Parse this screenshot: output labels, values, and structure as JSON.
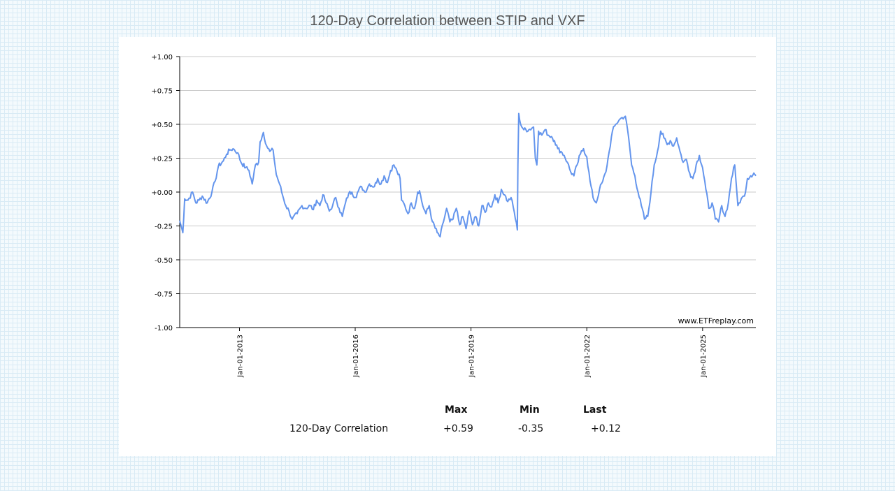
{
  "chart_data": {
    "type": "line",
    "title": "120-Day Correlation between STIP and VXF",
    "xlabel": "",
    "ylabel": "",
    "ylim": [
      -1.0,
      1.0
    ],
    "xlim": [
      "2011-06-15",
      "2026-05-20"
    ],
    "grid": true,
    "y_ticks": [
      "+1.00",
      "+0.75",
      "+0.50",
      "+0.25",
      "+0.00",
      "-0.25",
      "-0.50",
      "-0.75",
      "-1.00"
    ],
    "x_ticks": [
      {
        "date": "2013-01-01",
        "label": "Jan-01-2013"
      },
      {
        "date": "2016-01-01",
        "label": "Jan-01-2016"
      },
      {
        "date": "2019-01-01",
        "label": "Jan-01-2019"
      },
      {
        "date": "2022-01-01",
        "label": "Jan-01-2022"
      },
      {
        "date": "2025-01-01",
        "label": "Jan-01-2025"
      }
    ],
    "watermark": "www.ETFreplay.com",
    "line_color": "#6495ed",
    "series": [
      {
        "points": [
          [
            "2011-06-15",
            -0.21
          ],
          [
            "2011-07-15",
            -0.3
          ],
          [
            "2011-08-01",
            -0.05
          ],
          [
            "2011-09-01",
            -0.06
          ],
          [
            "2011-10-15",
            0.0
          ],
          [
            "2011-11-15",
            -0.08
          ],
          [
            "2011-12-15",
            -0.06
          ],
          [
            "2012-01-15",
            -0.03
          ],
          [
            "2012-03-01",
            -0.08
          ],
          [
            "2012-04-15",
            0.0
          ],
          [
            "2012-05-15",
            0.08
          ],
          [
            "2012-06-15",
            0.19
          ],
          [
            "2012-08-01",
            0.23
          ],
          [
            "2012-09-01",
            0.28
          ],
          [
            "2012-10-01",
            0.31
          ],
          [
            "2012-11-01",
            0.32
          ],
          [
            "2012-12-15",
            0.29
          ],
          [
            "2013-01-15",
            0.22
          ],
          [
            "2013-03-01",
            0.18
          ],
          [
            "2013-04-01",
            0.16
          ],
          [
            "2013-05-01",
            0.06
          ],
          [
            "2013-06-01",
            0.2
          ],
          [
            "2013-07-01",
            0.22
          ],
          [
            "2013-07-15",
            0.37
          ],
          [
            "2013-08-15",
            0.44
          ],
          [
            "2013-09-15",
            0.34
          ],
          [
            "2013-10-15",
            0.3
          ],
          [
            "2013-11-15",
            0.31
          ],
          [
            "2013-12-15",
            0.13
          ],
          [
            "2014-01-15",
            0.06
          ],
          [
            "2014-02-15",
            -0.03
          ],
          [
            "2014-03-15",
            -0.1
          ],
          [
            "2014-04-15",
            -0.14
          ],
          [
            "2014-05-15",
            -0.2
          ],
          [
            "2014-07-01",
            -0.16
          ],
          [
            "2014-08-15",
            -0.1
          ],
          [
            "2014-09-15",
            -0.12
          ],
          [
            "2014-11-01",
            -0.1
          ],
          [
            "2014-12-01",
            -0.13
          ],
          [
            "2015-01-01",
            -0.06
          ],
          [
            "2015-02-01",
            -0.1
          ],
          [
            "2015-03-01",
            -0.02
          ],
          [
            "2015-04-01",
            -0.08
          ],
          [
            "2015-05-01",
            -0.14
          ],
          [
            "2015-06-01",
            -0.1
          ],
          [
            "2015-07-01",
            -0.04
          ],
          [
            "2015-08-01",
            -0.12
          ],
          [
            "2015-09-01",
            -0.18
          ],
          [
            "2015-10-01",
            -0.08
          ],
          [
            "2015-11-01",
            -0.01
          ],
          [
            "2015-12-01",
            0.0
          ],
          [
            "2016-01-01",
            -0.04
          ],
          [
            "2016-02-01",
            0.01
          ],
          [
            "2016-03-01",
            0.04
          ],
          [
            "2016-04-01",
            0.0
          ],
          [
            "2016-05-15",
            0.06
          ],
          [
            "2016-07-01",
            0.04
          ],
          [
            "2016-08-01",
            0.1
          ],
          [
            "2016-09-01",
            0.06
          ],
          [
            "2016-10-01",
            0.12
          ],
          [
            "2016-11-01",
            0.07
          ],
          [
            "2016-12-01",
            0.16
          ],
          [
            "2017-01-01",
            0.2
          ],
          [
            "2017-02-01",
            0.15
          ],
          [
            "2017-03-01",
            0.1
          ],
          [
            "2017-03-15",
            -0.06
          ],
          [
            "2017-04-15",
            -0.1
          ],
          [
            "2017-05-15",
            -0.16
          ],
          [
            "2017-06-15",
            -0.08
          ],
          [
            "2017-07-15",
            -0.12
          ],
          [
            "2017-08-15",
            0.0
          ],
          [
            "2017-09-01",
            0.01
          ],
          [
            "2017-10-01",
            -0.1
          ],
          [
            "2017-11-01",
            -0.16
          ],
          [
            "2017-12-01",
            -0.1
          ],
          [
            "2018-01-01",
            -0.22
          ],
          [
            "2018-02-15",
            -0.3
          ],
          [
            "2018-03-15",
            -0.33
          ],
          [
            "2018-04-15",
            -0.22
          ],
          [
            "2018-05-15",
            -0.12
          ],
          [
            "2018-06-15",
            -0.22
          ],
          [
            "2018-07-15",
            -0.2
          ],
          [
            "2018-08-15",
            -0.12
          ],
          [
            "2018-09-15",
            -0.24
          ],
          [
            "2018-10-15",
            -0.18
          ],
          [
            "2018-11-15",
            -0.27
          ],
          [
            "2018-12-15",
            -0.14
          ],
          [
            "2019-01-15",
            -0.24
          ],
          [
            "2019-02-15",
            -0.18
          ],
          [
            "2019-03-15",
            -0.25
          ],
          [
            "2019-04-15",
            -0.1
          ],
          [
            "2019-05-15",
            -0.15
          ],
          [
            "2019-06-15",
            -0.08
          ],
          [
            "2019-07-15",
            -0.11
          ],
          [
            "2019-08-15",
            -0.02
          ],
          [
            "2019-09-15",
            -0.08
          ],
          [
            "2019-10-15",
            0.02
          ],
          [
            "2019-11-15",
            -0.02
          ],
          [
            "2019-12-15",
            -0.07
          ],
          [
            "2020-01-15",
            -0.04
          ],
          [
            "2020-02-15",
            -0.15
          ],
          [
            "2020-03-15",
            -0.28
          ],
          [
            "2020-03-20",
            0.2
          ],
          [
            "2020-03-28",
            0.58
          ],
          [
            "2020-04-15",
            0.5
          ],
          [
            "2020-05-15",
            0.46
          ],
          [
            "2020-07-01",
            0.46
          ],
          [
            "2020-08-15",
            0.48
          ],
          [
            "2020-09-01",
            0.25
          ],
          [
            "2020-09-15",
            0.2
          ],
          [
            "2020-10-01",
            0.45
          ],
          [
            "2020-11-01",
            0.42
          ],
          [
            "2020-12-01",
            0.46
          ],
          [
            "2021-01-01",
            0.42
          ],
          [
            "2021-02-01",
            0.41
          ],
          [
            "2021-03-01",
            0.38
          ],
          [
            "2021-04-01",
            0.32
          ],
          [
            "2021-05-01",
            0.3
          ],
          [
            "2021-06-01",
            0.27
          ],
          [
            "2021-07-01",
            0.22
          ],
          [
            "2021-08-01",
            0.15
          ],
          [
            "2021-09-01",
            0.12
          ],
          [
            "2021-10-01",
            0.2
          ],
          [
            "2021-11-01",
            0.28
          ],
          [
            "2021-12-01",
            0.32
          ],
          [
            "2022-01-01",
            0.26
          ],
          [
            "2022-02-01",
            0.08
          ],
          [
            "2022-03-01",
            -0.04
          ],
          [
            "2022-04-01",
            -0.08
          ],
          [
            "2022-05-01",
            0.02
          ],
          [
            "2022-06-01",
            0.08
          ],
          [
            "2022-07-01",
            0.15
          ],
          [
            "2022-08-01",
            0.3
          ],
          [
            "2022-09-01",
            0.45
          ],
          [
            "2022-10-01",
            0.5
          ],
          [
            "2022-11-01",
            0.53
          ],
          [
            "2022-12-01",
            0.55
          ],
          [
            "2023-01-01",
            0.56
          ],
          [
            "2023-02-01",
            0.4
          ],
          [
            "2023-03-01",
            0.2
          ],
          [
            "2023-04-01",
            0.12
          ],
          [
            "2023-05-01",
            0.0
          ],
          [
            "2023-06-01",
            -0.1
          ],
          [
            "2023-07-01",
            -0.2
          ],
          [
            "2023-08-01",
            -0.18
          ],
          [
            "2023-09-01",
            0.0
          ],
          [
            "2023-10-01",
            0.2
          ],
          [
            "2023-11-01",
            0.3
          ],
          [
            "2023-12-01",
            0.45
          ],
          [
            "2024-01-01",
            0.4
          ],
          [
            "2024-02-01",
            0.35
          ],
          [
            "2024-03-01",
            0.38
          ],
          [
            "2024-04-01",
            0.34
          ],
          [
            "2024-05-01",
            0.4
          ],
          [
            "2024-06-01",
            0.3
          ],
          [
            "2024-07-01",
            0.22
          ],
          [
            "2024-08-01",
            0.24
          ],
          [
            "2024-09-01",
            0.14
          ],
          [
            "2024-10-01",
            0.1
          ],
          [
            "2024-11-01",
            0.2
          ],
          [
            "2024-12-01",
            0.27
          ],
          [
            "2025-01-01",
            0.18
          ],
          [
            "2025-02-01",
            0.02
          ],
          [
            "2025-03-01",
            -0.12
          ],
          [
            "2025-04-01",
            -0.08
          ],
          [
            "2025-05-01",
            -0.2
          ],
          [
            "2025-06-01",
            -0.22
          ],
          [
            "2025-07-01",
            -0.1
          ],
          [
            "2025-08-01",
            -0.18
          ],
          [
            "2025-09-01",
            -0.08
          ],
          [
            "2025-10-01",
            0.1
          ],
          [
            "2025-11-01",
            0.2
          ],
          [
            "2025-12-01",
            -0.1
          ],
          [
            "2026-01-01",
            -0.05
          ],
          [
            "2026-02-01",
            -0.03
          ],
          [
            "2026-03-01",
            0.1
          ],
          [
            "2026-04-01",
            0.12
          ],
          [
            "2026-05-01",
            0.14
          ],
          [
            "2026-05-20",
            0.12
          ]
        ]
      }
    ]
  },
  "stats": {
    "headers": [
      "Max",
      "Min",
      "Last"
    ],
    "rows": [
      {
        "label": "120-Day Correlation",
        "values": [
          "+0.59",
          "-0.35",
          "+0.12"
        ]
      }
    ]
  }
}
